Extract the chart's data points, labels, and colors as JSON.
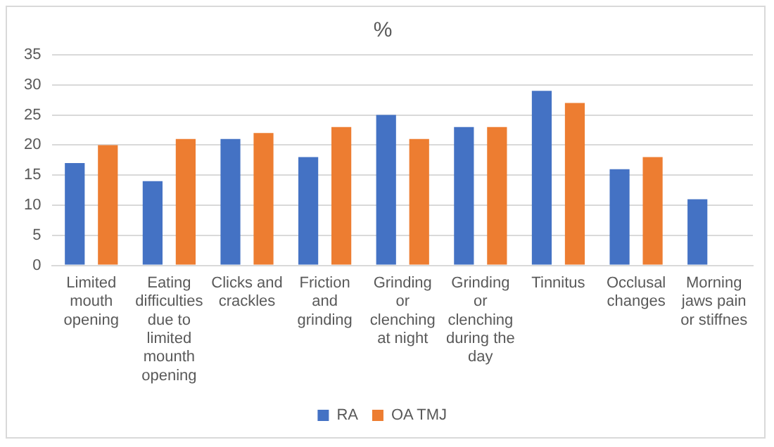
{
  "chart_data": {
    "type": "bar",
    "title": "%",
    "categories": [
      "Limited mouth opening",
      "Eating difficulties due to limited mounth opening",
      "Clicks and crackles",
      "Friction and grinding",
      "Grinding or clenching at night",
      "Grinding or clenching during the day",
      "Tinnitus",
      "Occlusal changes",
      "Morning jaws pain or stiffnes"
    ],
    "series": [
      {
        "name": "RA",
        "color": "#4472c4",
        "values": [
          17,
          14,
          21,
          18,
          25,
          23,
          29,
          16,
          11
        ]
      },
      {
        "name": "OA TMJ",
        "color": "#ed7d31",
        "values": [
          20,
          21,
          22,
          23,
          21,
          23,
          27,
          18,
          null
        ]
      }
    ],
    "ylim": [
      0,
      35
    ],
    "yticks": [
      0,
      5,
      10,
      15,
      20,
      25,
      30,
      35
    ],
    "grid": "y",
    "legend": "bottom"
  }
}
